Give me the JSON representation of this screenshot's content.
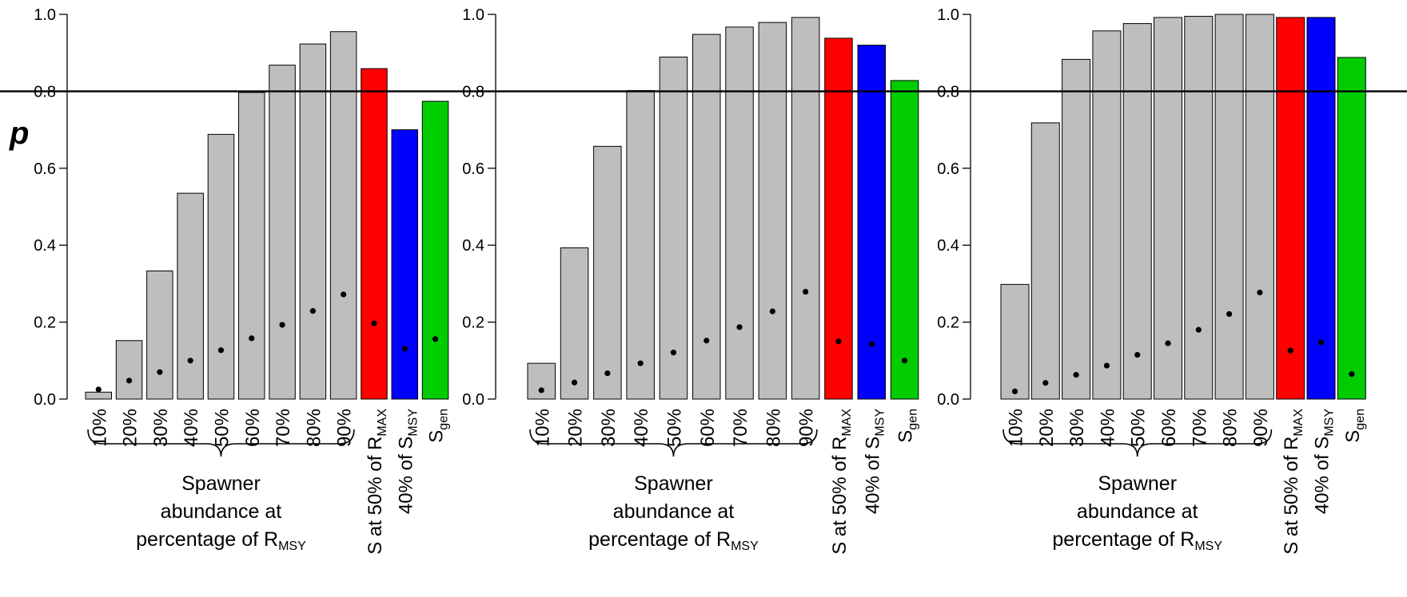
{
  "chart_data": [
    {
      "type": "bar",
      "ylabel": "p",
      "ylim": [
        0,
        1
      ],
      "yticks": [
        "0.0",
        "0.2",
        "0.4",
        "0.6",
        "0.8",
        "1.0"
      ],
      "reference_line": 0.8,
      "categories": [
        {
          "text": "10%"
        },
        {
          "text": "20%"
        },
        {
          "text": "30%"
        },
        {
          "text": "40%"
        },
        {
          "text": "50%"
        },
        {
          "text": "60%"
        },
        {
          "text": "70%"
        },
        {
          "text": "80%"
        },
        {
          "text": "90%"
        },
        {
          "text": "S at 50% of R",
          "sub": "MAX"
        },
        {
          "text": "40% of S",
          "sub": "MSY"
        },
        {
          "text": "S",
          "sub": "gen"
        }
      ],
      "values": [
        0.018,
        0.152,
        0.333,
        0.535,
        0.688,
        0.797,
        0.868,
        0.923,
        0.955,
        0.859,
        0.7,
        0.774
      ],
      "points": [
        0.025,
        0.048,
        0.07,
        0.1,
        0.127,
        0.158,
        0.193,
        0.229,
        0.272,
        0.197,
        0.131,
        0.156
      ],
      "bar_colors": [
        "#bebebe",
        "#bebebe",
        "#bebebe",
        "#bebebe",
        "#bebebe",
        "#bebebe",
        "#bebebe",
        "#bebebe",
        "#bebebe",
        "#ff0000",
        "#0000ff",
        "#00cc00"
      ],
      "group_label": [
        "Spawner",
        "abundance at",
        "percentage of R"
      ],
      "group_label_sub": "MSY"
    },
    {
      "type": "bar",
      "ylim": [
        0,
        1
      ],
      "yticks": [
        "0.0",
        "0.2",
        "0.4",
        "0.6",
        "0.8",
        "1.0"
      ],
      "reference_line": 0.8,
      "categories": [
        {
          "text": "10%"
        },
        {
          "text": "20%"
        },
        {
          "text": "30%"
        },
        {
          "text": "40%"
        },
        {
          "text": "50%"
        },
        {
          "text": "60%"
        },
        {
          "text": "70%"
        },
        {
          "text": "80%"
        },
        {
          "text": "90%"
        },
        {
          "text": "S at 50% of R",
          "sub": "MAX"
        },
        {
          "text": "40% of S",
          "sub": "MSY"
        },
        {
          "text": "S",
          "sub": "gen"
        }
      ],
      "values": [
        0.093,
        0.393,
        0.657,
        0.802,
        0.889,
        0.948,
        0.967,
        0.979,
        0.992,
        0.938,
        0.92,
        0.828
      ],
      "points": [
        0.023,
        0.043,
        0.067,
        0.093,
        0.121,
        0.152,
        0.187,
        0.228,
        0.279,
        0.15,
        0.143,
        0.1
      ],
      "bar_colors": [
        "#bebebe",
        "#bebebe",
        "#bebebe",
        "#bebebe",
        "#bebebe",
        "#bebebe",
        "#bebebe",
        "#bebebe",
        "#bebebe",
        "#ff0000",
        "#0000ff",
        "#00cc00"
      ],
      "group_label": [
        "Spawner",
        "abundance at",
        "percentage of R"
      ],
      "group_label_sub": "MSY"
    },
    {
      "type": "bar",
      "ylim": [
        0,
        1
      ],
      "yticks": [
        "0.0",
        "0.2",
        "0.4",
        "0.6",
        "0.8",
        "1.0"
      ],
      "reference_line": 0.8,
      "categories": [
        {
          "text": "10%"
        },
        {
          "text": "20%"
        },
        {
          "text": "30%"
        },
        {
          "text": "40%"
        },
        {
          "text": "50%"
        },
        {
          "text": "60%"
        },
        {
          "text": "70%"
        },
        {
          "text": "80%"
        },
        {
          "text": "90%"
        },
        {
          "text": "S at 50% of R",
          "sub": "MAX"
        },
        {
          "text": "40% of S",
          "sub": "MSY"
        },
        {
          "text": "S",
          "sub": "gen"
        }
      ],
      "values": [
        0.298,
        0.718,
        0.883,
        0.957,
        0.976,
        0.992,
        0.995,
        1.0,
        1.0,
        0.992,
        0.992,
        0.888
      ],
      "points": [
        0.02,
        0.042,
        0.063,
        0.087,
        0.115,
        0.145,
        0.18,
        0.221,
        0.277,
        0.126,
        0.147,
        0.065
      ],
      "bar_colors": [
        "#bebebe",
        "#bebebe",
        "#bebebe",
        "#bebebe",
        "#bebebe",
        "#bebebe",
        "#bebebe",
        "#bebebe",
        "#bebebe",
        "#ff0000",
        "#0000ff",
        "#00cc00"
      ],
      "group_label": [
        "Spawner",
        "abundance at",
        "percentage of R"
      ],
      "group_label_sub": "MSY"
    }
  ]
}
